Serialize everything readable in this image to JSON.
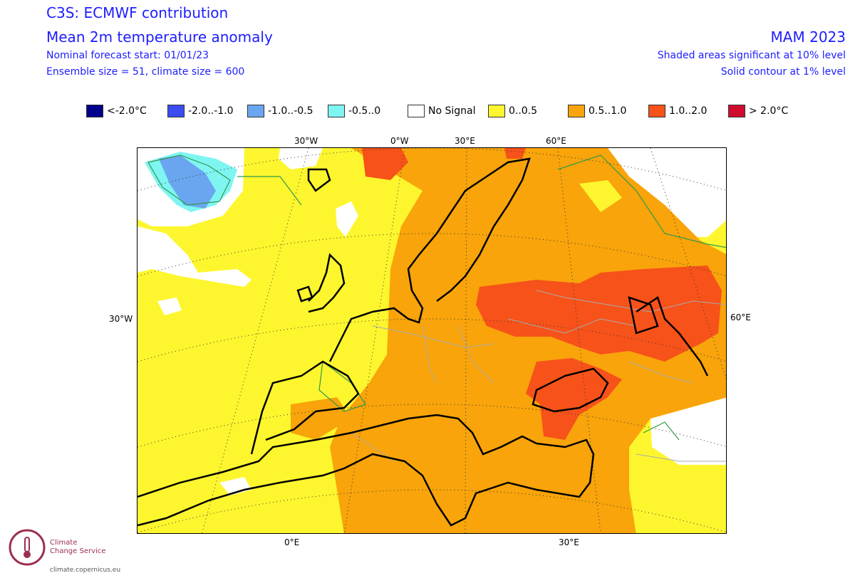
{
  "header": {
    "title_line1": "C3S: ECMWF contribution",
    "title_line2": "Mean 2m temperature anomaly",
    "forecast_start": "Nominal forecast start: 01/01/23",
    "ensemble": "Ensemble size = 51, climate size = 600",
    "season": "MAM 2023",
    "significance_10": "Shaded areas significant at 10% level",
    "significance_1": "Solid contour at 1% level"
  },
  "legend": [
    {
      "label": "<-2.0°C",
      "color": "#00008b"
    },
    {
      "label": "-2.0..-1.0",
      "color": "#3b4cf2"
    },
    {
      "label": "-1.0..-0.5",
      "color": "#6aa6ef"
    },
    {
      "label": "-0.5..0",
      "color": "#7ff5f2"
    },
    {
      "label": "No Signal",
      "color": "#ffffff"
    },
    {
      "label": "0..0.5",
      "color": "#fdf62e"
    },
    {
      "label": "0.5..1.0",
      "color": "#f8a40a"
    },
    {
      "label": "1.0..2.0",
      "color": "#f7521a"
    },
    {
      "label": "> 2.0°C",
      "color": "#cf0c2d"
    }
  ],
  "axes": {
    "top": [
      "30°W",
      "0°W",
      "30°E",
      "60°E"
    ],
    "left": "30°W",
    "right": "60°E",
    "bottom": [
      "0°E",
      "30°E"
    ]
  },
  "logo": {
    "line1": "Climate",
    "line2": "Change Service",
    "url": "climate.copernicus.eu"
  }
}
